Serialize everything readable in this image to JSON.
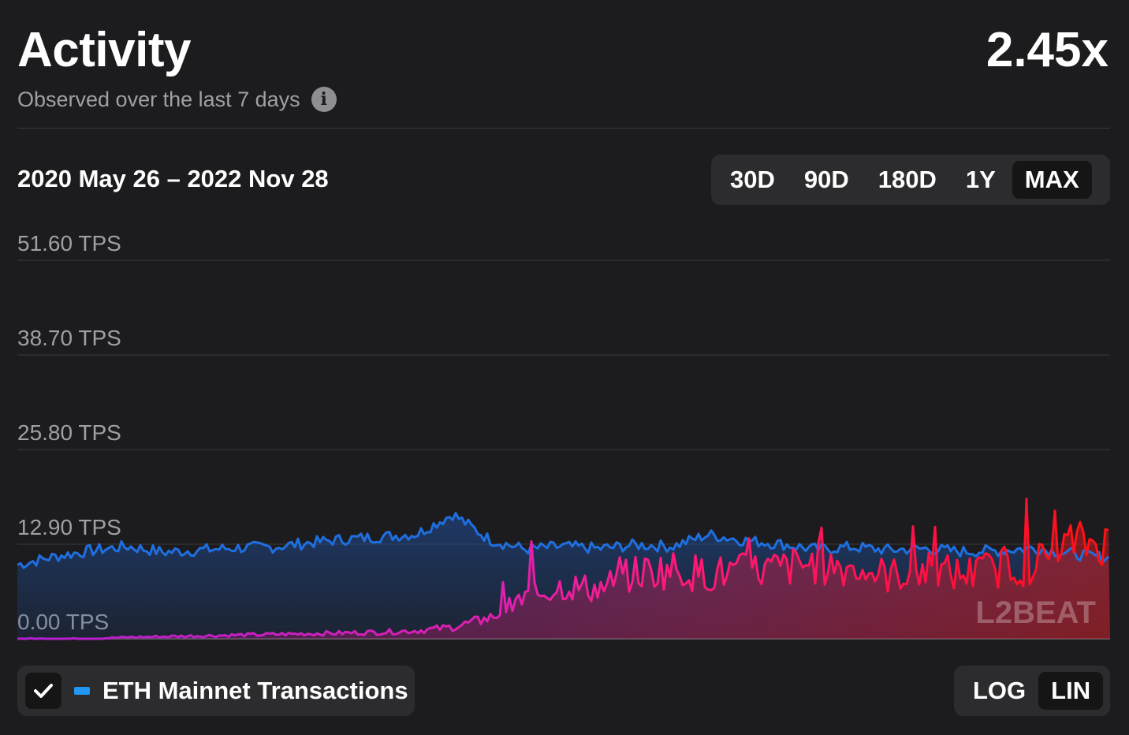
{
  "header": {
    "title": "Activity",
    "ratio": "2.45x",
    "subtitle": "Observed over the last 7 days",
    "info_icon": "info-icon"
  },
  "date_range": "2020 May 26 – 2022 Nov 28",
  "time_ranges": [
    {
      "label": "30D",
      "active": false
    },
    {
      "label": "90D",
      "active": false
    },
    {
      "label": "180D",
      "active": false
    },
    {
      "label": "1Y",
      "active": false
    },
    {
      "label": "MAX",
      "active": true
    }
  ],
  "scale_toggle": [
    {
      "label": "LOG",
      "active": false
    },
    {
      "label": "LIN",
      "active": true
    }
  ],
  "legend": {
    "checked": true,
    "label": "ETH Mainnet Transactions",
    "color": "#2196f3"
  },
  "watermark": "L2BEAT",
  "colors": {
    "background": "#1c1c1e",
    "eth_line": "#1f6fe0",
    "l2_start": "#b020d0",
    "l2_mid": "#ff1a7a",
    "l2_end": "#ff1010"
  },
  "chart_data": {
    "type": "line",
    "y_unit": "TPS",
    "ylim": [
      0,
      51.6
    ],
    "y_ticks": [
      "0.00 TPS",
      "12.90 TPS",
      "25.80 TPS",
      "38.70 TPS",
      "51.60 TPS"
    ],
    "y_tick_values": [
      0,
      12.9,
      25.8,
      38.7,
      51.6
    ],
    "x_range": [
      "2020-05-26",
      "2022-11-28"
    ],
    "grid": true,
    "series": [
      {
        "name": "ETH Mainnet Transactions",
        "color": "#1f6fe0",
        "x": [
          "2020-05-26",
          "2020-06-26",
          "2020-07-26",
          "2020-08-26",
          "2020-09-26",
          "2020-10-26",
          "2020-11-26",
          "2020-12-26",
          "2021-01-26",
          "2021-02-26",
          "2021-03-26",
          "2021-04-26",
          "2021-05-26",
          "2021-06-26",
          "2021-07-26",
          "2021-08-26",
          "2021-09-26",
          "2021-10-26",
          "2021-11-26",
          "2021-12-26",
          "2022-01-26",
          "2022-02-26",
          "2022-03-26",
          "2022-04-26",
          "2022-05-26",
          "2022-06-26",
          "2022-07-26",
          "2022-08-26",
          "2022-09-26",
          "2022-10-26",
          "2022-11-28"
        ],
        "values": [
          10.1,
          11.2,
          12.0,
          12.6,
          11.8,
          12.1,
          12.4,
          12.5,
          13.1,
          13.6,
          13.9,
          14.3,
          17.0,
          13.5,
          12.2,
          12.6,
          12.3,
          12.8,
          12.6,
          14.2,
          13.4,
          12.9,
          12.2,
          12.5,
          12.1,
          12.3,
          11.9,
          12.0,
          12.4,
          11.6,
          11.0
        ]
      },
      {
        "name": "",
        "x": [
          "2020-05-26",
          "2020-06-26",
          "2020-07-26",
          "2020-08-26",
          "2020-09-26",
          "2020-10-26",
          "2020-11-26",
          "2020-12-26",
          "2021-01-26",
          "2021-02-26",
          "2021-03-26",
          "2021-04-26",
          "2021-05-26",
          "2021-06-26",
          "2021-07-26",
          "2021-08-26",
          "2021-09-26",
          "2021-10-26",
          "2021-11-26",
          "2021-12-26",
          "2022-01-26",
          "2022-02-26",
          "2022-03-26",
          "2022-04-26",
          "2022-05-26",
          "2022-06-26",
          "2022-07-26",
          "2022-08-26",
          "2022-09-26",
          "2022-10-26",
          "2022-11-28"
        ],
        "values": [
          0.0,
          0.0,
          0.0,
          0.2,
          0.3,
          0.4,
          0.5,
          0.6,
          0.7,
          0.8,
          0.9,
          1.1,
          1.6,
          2.8,
          5.6,
          7.2,
          6.8,
          9.0,
          9.5,
          8.8,
          9.2,
          9.6,
          10.3,
          9.7,
          8.6,
          9.4,
          8.8,
          9.6,
          10.1,
          13.2,
          13.0
        ]
      }
    ]
  }
}
